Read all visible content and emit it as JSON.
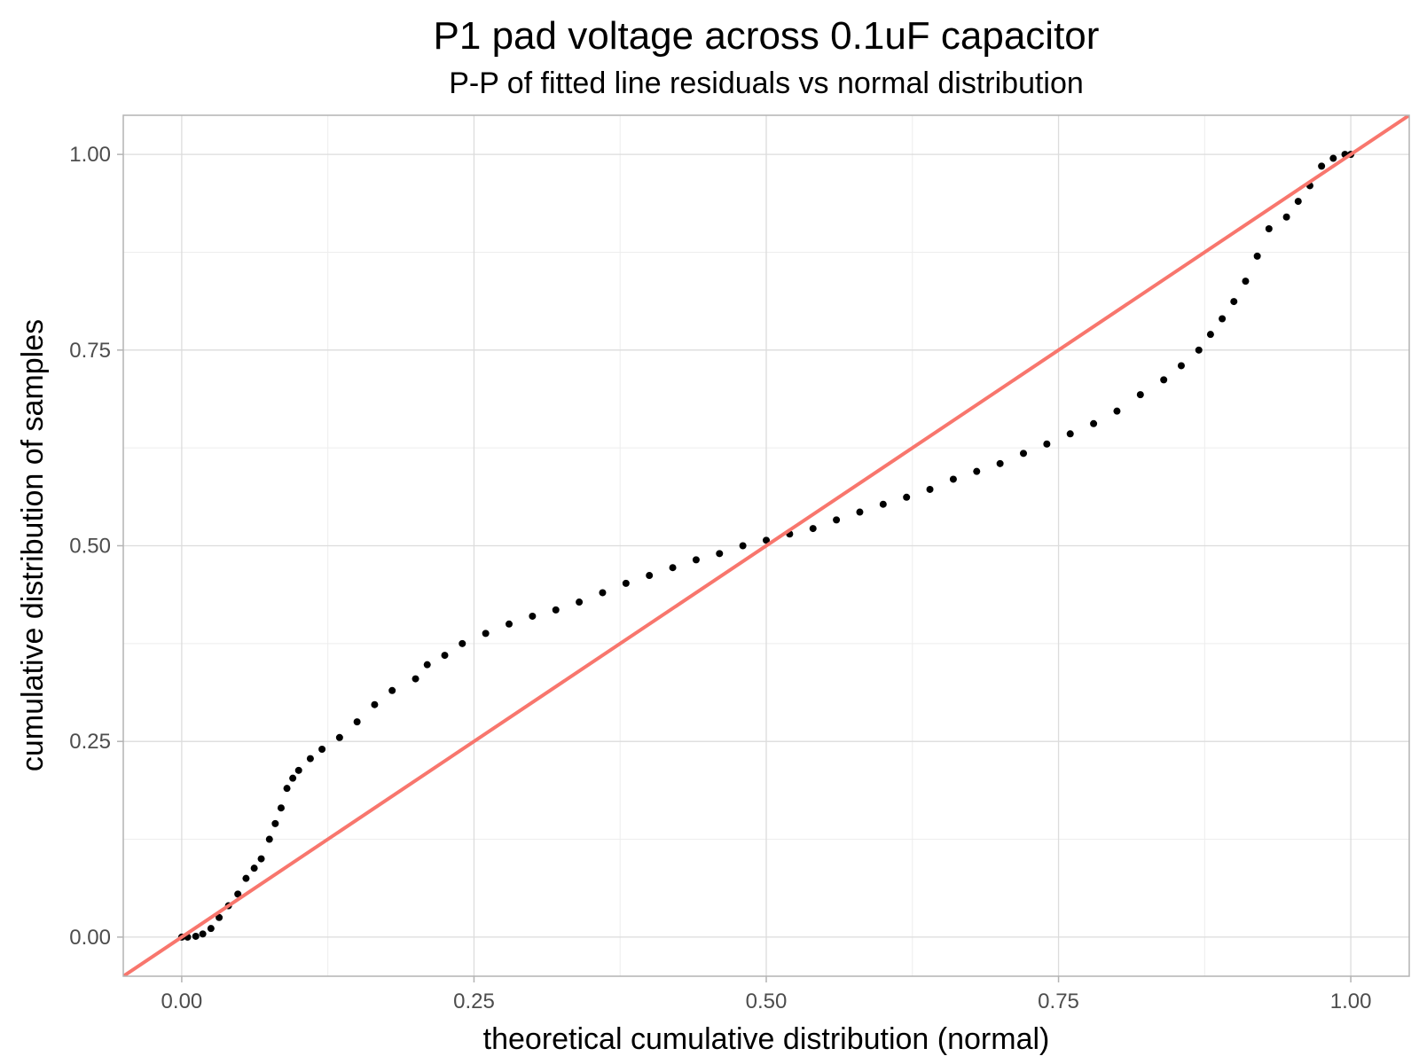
{
  "chart_data": {
    "type": "scatter",
    "title": "P1 pad voltage across 0.1uF capacitor",
    "subtitle": "P-P of fitted line residuals vs normal distribution",
    "xlabel": "theoretical cumulative distribution (normal)",
    "ylabel": "cumulative distribution of samples",
    "xlim": [
      -0.05,
      1.05
    ],
    "ylim": [
      -0.05,
      1.05
    ],
    "x_ticks": [
      0,
      0.25,
      0.5,
      0.75,
      1
    ],
    "y_ticks": [
      0,
      0.25,
      0.5,
      0.75,
      1
    ],
    "x_tick_labels": [
      "0.00",
      "0.25",
      "0.50",
      "0.75",
      "1.00"
    ],
    "y_tick_labels": [
      "0.00",
      "0.25",
      "0.50",
      "0.75",
      "1.00"
    ],
    "grid": true,
    "point_color": "#000000",
    "reference_line": {
      "slope": 1,
      "intercept": 0,
      "color": "#F8766D"
    },
    "points": [
      [
        0.0,
        0.0
      ],
      [
        0.005,
        0.0
      ],
      [
        0.012,
        0.001
      ],
      [
        0.018,
        0.004
      ],
      [
        0.025,
        0.011
      ],
      [
        0.032,
        0.025
      ],
      [
        0.04,
        0.04
      ],
      [
        0.048,
        0.055
      ],
      [
        0.055,
        0.075
      ],
      [
        0.062,
        0.088
      ],
      [
        0.068,
        0.1
      ],
      [
        0.075,
        0.125
      ],
      [
        0.08,
        0.145
      ],
      [
        0.085,
        0.165
      ],
      [
        0.09,
        0.19
      ],
      [
        0.095,
        0.203
      ],
      [
        0.1,
        0.213
      ],
      [
        0.11,
        0.228
      ],
      [
        0.12,
        0.24
      ],
      [
        0.135,
        0.255
      ],
      [
        0.15,
        0.275
      ],
      [
        0.165,
        0.297
      ],
      [
        0.18,
        0.315
      ],
      [
        0.2,
        0.33
      ],
      [
        0.21,
        0.348
      ],
      [
        0.225,
        0.36
      ],
      [
        0.24,
        0.375
      ],
      [
        0.26,
        0.388
      ],
      [
        0.28,
        0.4
      ],
      [
        0.3,
        0.41
      ],
      [
        0.32,
        0.418
      ],
      [
        0.34,
        0.428
      ],
      [
        0.36,
        0.44
      ],
      [
        0.38,
        0.452
      ],
      [
        0.4,
        0.462
      ],
      [
        0.42,
        0.472
      ],
      [
        0.44,
        0.482
      ],
      [
        0.46,
        0.49
      ],
      [
        0.48,
        0.5
      ],
      [
        0.5,
        0.507
      ],
      [
        0.52,
        0.515
      ],
      [
        0.54,
        0.522
      ],
      [
        0.56,
        0.533
      ],
      [
        0.58,
        0.543
      ],
      [
        0.6,
        0.553
      ],
      [
        0.62,
        0.562
      ],
      [
        0.64,
        0.572
      ],
      [
        0.66,
        0.585
      ],
      [
        0.68,
        0.595
      ],
      [
        0.7,
        0.605
      ],
      [
        0.72,
        0.618
      ],
      [
        0.74,
        0.63
      ],
      [
        0.76,
        0.643
      ],
      [
        0.78,
        0.656
      ],
      [
        0.8,
        0.672
      ],
      [
        0.82,
        0.693
      ],
      [
        0.84,
        0.712
      ],
      [
        0.855,
        0.73
      ],
      [
        0.87,
        0.75
      ],
      [
        0.88,
        0.77
      ],
      [
        0.89,
        0.79
      ],
      [
        0.9,
        0.812
      ],
      [
        0.91,
        0.838
      ],
      [
        0.92,
        0.87
      ],
      [
        0.93,
        0.905
      ],
      [
        0.945,
        0.92
      ],
      [
        0.955,
        0.94
      ],
      [
        0.965,
        0.96
      ],
      [
        0.975,
        0.985
      ],
      [
        0.985,
        0.995
      ],
      [
        0.995,
        1.0
      ],
      [
        1.0,
        1.0
      ]
    ]
  }
}
